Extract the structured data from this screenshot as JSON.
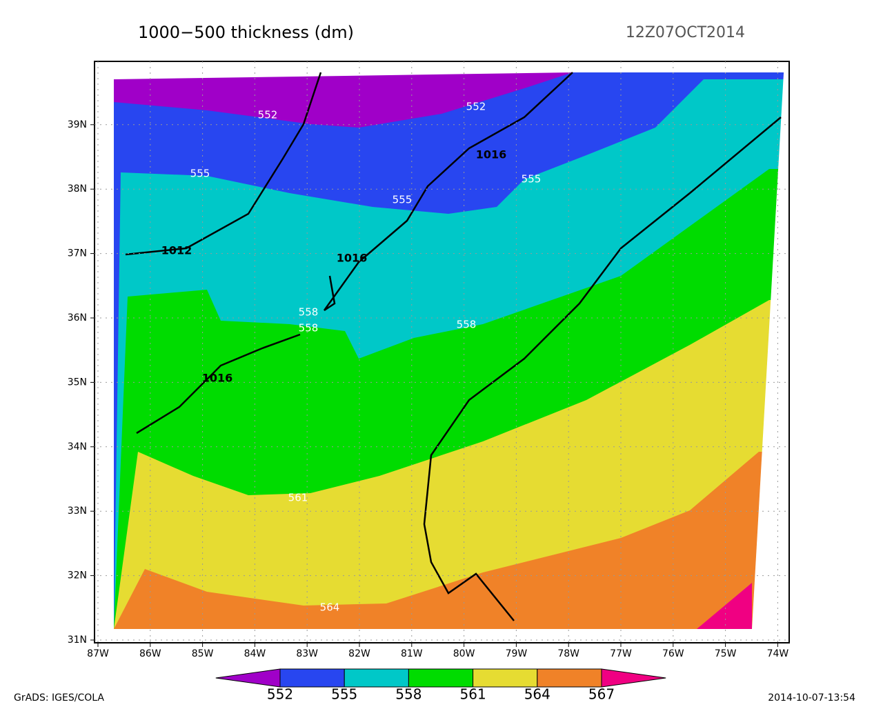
{
  "header": {
    "title": "1000−500 thickness (dm)",
    "timestamp": "12Z07OCT2014"
  },
  "map": {
    "lon_ticks": [
      "87W",
      "86W",
      "85W",
      "84W",
      "83W",
      "82W",
      "81W",
      "80W",
      "79W",
      "78W",
      "77W",
      "76W",
      "75W",
      "74W"
    ],
    "lat_ticks": [
      "31N",
      "32N",
      "33N",
      "34N",
      "35N",
      "36N",
      "37N",
      "38N",
      "39N"
    ],
    "thickness_labels": [
      "552",
      "552",
      "555",
      "555",
      "555",
      "558",
      "558",
      "558",
      "561",
      "564"
    ],
    "pressure_labels": [
      "1012",
      "1016",
      "1016",
      "1016"
    ]
  },
  "colorbar": {
    "levels": [
      552,
      555,
      558,
      561,
      564,
      567
    ],
    "colors": [
      "#a000c8",
      "#2846f0",
      "#00c8c8",
      "#00dc00",
      "#e6dc32",
      "#f08228",
      "#f00082"
    ]
  },
  "footer": {
    "left": "GrADS: IGES/COLA",
    "right": "2014-10-07-13:54"
  }
}
